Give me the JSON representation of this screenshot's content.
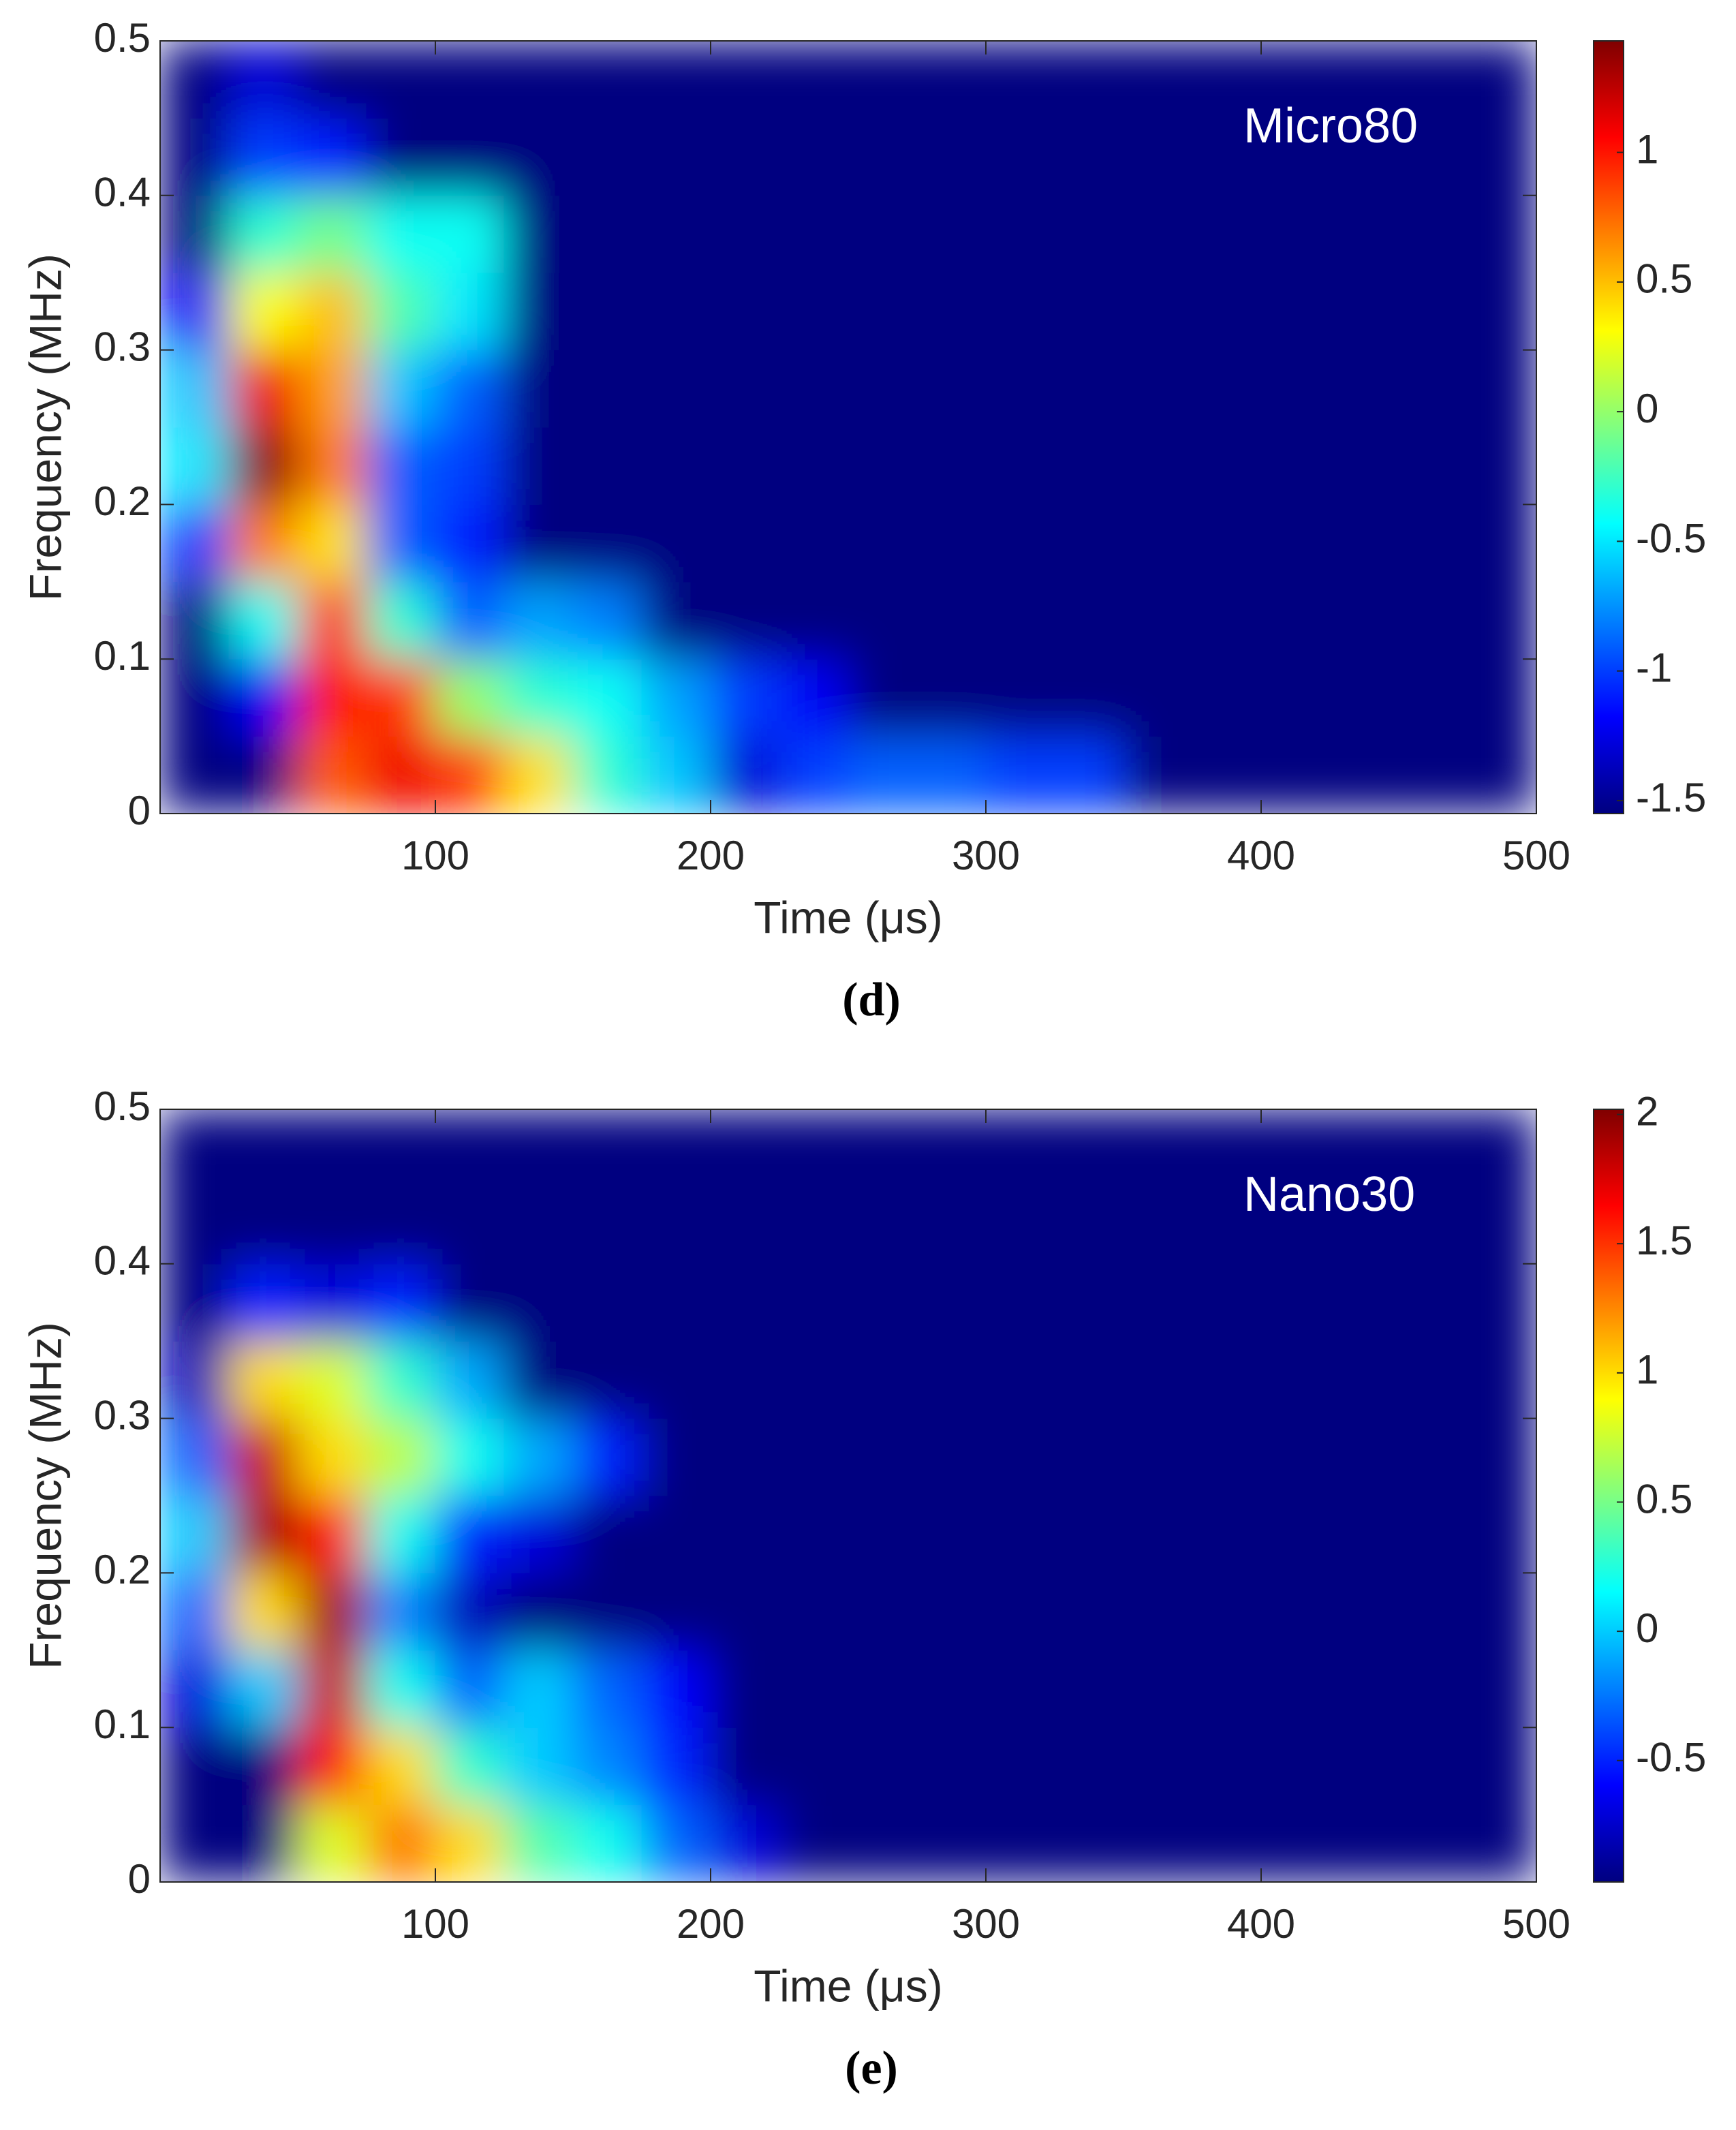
{
  "chart_data": [
    {
      "type": "heatmap",
      "annotation": "Micro80",
      "caption": "(d)",
      "xlabel": "Time (μs)",
      "ylabel": "Frequency (MHz)",
      "colormap": "jet",
      "x": [
        12.5,
        37.5,
        62.5,
        87.5,
        112.5,
        137.5,
        162.5,
        187.5,
        212.5,
        237.5,
        262.5,
        287.5,
        312.5,
        337.5,
        362.5,
        387.5,
        412.5,
        437.5,
        462.5,
        487.5
      ],
      "y": [
        0.025,
        0.075,
        0.125,
        0.175,
        0.225,
        0.275,
        0.325,
        0.375,
        0.425,
        0.475
      ],
      "z": [
        [
          -1.55,
          -1.55,
          0.8,
          1.1,
          0.9,
          0.4,
          -0.3,
          -0.6,
          -1.3,
          -1.0,
          -0.9,
          -0.9,
          -1.0,
          -1.0,
          -1.55,
          -1.55,
          -1.55,
          -1.55,
          -1.55,
          -1.55
        ],
        [
          -1.55,
          -1.2,
          1.0,
          0.9,
          0.0,
          -0.3,
          -0.4,
          -0.7,
          -1.0,
          -1.2,
          -1.55,
          -1.55,
          -1.55,
          -1.55,
          -1.55,
          -1.55,
          -1.55,
          -1.55,
          -1.55,
          -1.55
        ],
        [
          -1.55,
          -0.4,
          0.9,
          -0.3,
          -0.9,
          -0.7,
          -0.8,
          -1.55,
          -1.55,
          -1.55,
          -1.55,
          -1.55,
          -1.55,
          -1.55,
          -1.55,
          -1.55,
          -1.55,
          -1.55,
          -1.55,
          -1.55
        ],
        [
          -1.0,
          0.7,
          0.4,
          -0.9,
          -1.1,
          -1.55,
          -1.55,
          -1.55,
          -1.55,
          -1.55,
          -1.55,
          -1.55,
          -1.55,
          -1.55,
          -1.55,
          -1.55,
          -1.55,
          -1.55,
          -1.55,
          -1.55
        ],
        [
          -0.5,
          1.4,
          0.7,
          -0.9,
          -1.0,
          -1.55,
          -1.55,
          -1.55,
          -1.55,
          -1.55,
          -1.55,
          -1.55,
          -1.55,
          -1.55,
          -1.55,
          -1.55,
          -1.55,
          -1.55,
          -1.55,
          -1.55
        ],
        [
          -0.6,
          1.1,
          0.6,
          -0.6,
          -0.9,
          -1.55,
          -1.55,
          -1.55,
          -1.55,
          -1.55,
          -1.55,
          -1.55,
          -1.55,
          -1.55,
          -1.55,
          -1.55,
          -1.55,
          -1.55,
          -1.55,
          -1.55
        ],
        [
          -1.2,
          0.3,
          0.5,
          -0.2,
          -0.5,
          -1.55,
          -1.55,
          -1.55,
          -1.55,
          -1.55,
          -1.55,
          -1.55,
          -1.55,
          -1.55,
          -1.55,
          -1.55,
          -1.55,
          -1.55,
          -1.55,
          -1.55
        ],
        [
          -1.55,
          -0.3,
          -0.1,
          -0.4,
          -0.4,
          -1.55,
          -1.55,
          -1.55,
          -1.55,
          -1.55,
          -1.55,
          -1.55,
          -1.55,
          -1.55,
          -1.55,
          -1.55,
          -1.55,
          -1.55,
          -1.55,
          -1.55
        ],
        [
          -1.55,
          -1.0,
          -1.1,
          -1.55,
          -1.55,
          -1.55,
          -1.55,
          -1.55,
          -1.55,
          -1.55,
          -1.55,
          -1.55,
          -1.55,
          -1.55,
          -1.55,
          -1.55,
          -1.55,
          -1.55,
          -1.55,
          -1.55
        ],
        [
          -1.55,
          -1.3,
          -1.55,
          -1.55,
          -1.55,
          -1.55,
          -1.55,
          -1.55,
          -1.55,
          -1.55,
          -1.55,
          -1.55,
          -1.55,
          -1.55,
          -1.55,
          -1.55,
          -1.55,
          -1.55,
          -1.55,
          -1.55
        ]
      ],
      "xlim": [
        0,
        500
      ],
      "ylim": [
        0,
        0.5
      ],
      "xticks": [
        100,
        200,
        300,
        400,
        500
      ],
      "yticks": [
        0,
        0.1,
        0.2,
        0.3,
        0.4,
        0.5
      ],
      "clim": [
        -1.55,
        1.43
      ],
      "cticks": [
        -1.5,
        -1,
        -0.5,
        0,
        0.5,
        1
      ]
    },
    {
      "type": "heatmap",
      "annotation": "Nano30",
      "caption": "(e)",
      "xlabel": "Time (μs)",
      "ylabel": "Frequency (MHz)",
      "colormap": "jet",
      "x": [
        12.5,
        37.5,
        62.5,
        87.5,
        112.5,
        137.5,
        162.5,
        187.5,
        212.5,
        237.5,
        262.5,
        287.5,
        312.5,
        337.5,
        362.5,
        387.5,
        412.5,
        437.5,
        462.5,
        487.5
      ],
      "y": [
        0.025,
        0.075,
        0.125,
        0.175,
        0.225,
        0.275,
        0.325,
        0.375,
        0.425,
        0.475
      ],
      "z": [
        [
          -0.97,
          -0.97,
          0.8,
          1.3,
          1.0,
          0.4,
          0.2,
          -0.3,
          -0.7,
          -0.97,
          -0.97,
          -0.97,
          -0.97,
          -0.97,
          -0.97,
          -0.97,
          -0.97,
          -0.97,
          -0.97,
          -0.97
        ],
        [
          -0.97,
          -0.97,
          1.6,
          1.0,
          0.3,
          0.0,
          -0.2,
          -0.5,
          -0.97,
          -0.97,
          -0.97,
          -0.97,
          -0.97,
          -0.97,
          -0.97,
          -0.97,
          -0.97,
          -0.97,
          -0.97,
          -0.97
        ],
        [
          -0.7,
          0.0,
          1.8,
          0.2,
          -0.3,
          0.0,
          -0.3,
          -0.6,
          -0.97,
          -0.97,
          -0.97,
          -0.97,
          -0.97,
          -0.97,
          -0.97,
          -0.97,
          -0.97,
          -0.97,
          -0.97,
          -0.97
        ],
        [
          -0.3,
          1.0,
          1.9,
          -0.2,
          -0.8,
          -0.97,
          -0.97,
          -0.97,
          -0.97,
          -0.97,
          -0.97,
          -0.97,
          -0.97,
          -0.97,
          -0.97,
          -0.97,
          -0.97,
          -0.97,
          -0.97,
          -0.97
        ],
        [
          0.0,
          1.9,
          1.6,
          0.2,
          -0.5,
          -0.7,
          -0.97,
          -0.97,
          -0.97,
          -0.97,
          -0.97,
          -0.97,
          -0.97,
          -0.97,
          -0.97,
          -0.97,
          -0.97,
          -0.97,
          -0.97,
          -0.97
        ],
        [
          -0.3,
          1.8,
          1.0,
          0.7,
          0.2,
          -0.1,
          -0.5,
          -0.97,
          -0.97,
          -0.97,
          -0.97,
          -0.97,
          -0.97,
          -0.97,
          -0.97,
          -0.97,
          -0.97,
          -0.97,
          -0.97,
          -0.97
        ],
        [
          -0.8,
          1.0,
          0.8,
          0.3,
          -0.1,
          -0.97,
          -0.97,
          -0.97,
          -0.97,
          -0.97,
          -0.97,
          -0.97,
          -0.97,
          -0.97,
          -0.97,
          -0.97,
          -0.97,
          -0.97,
          -0.97,
          -0.97
        ],
        [
          -0.97,
          -0.5,
          -0.7,
          -0.5,
          -0.97,
          -0.97,
          -0.97,
          -0.97,
          -0.97,
          -0.97,
          -0.97,
          -0.97,
          -0.97,
          -0.97,
          -0.97,
          -0.97,
          -0.97,
          -0.97,
          -0.97,
          -0.97
        ],
        [
          -0.97,
          -0.97,
          -0.97,
          -0.97,
          -0.97,
          -0.97,
          -0.97,
          -0.97,
          -0.97,
          -0.97,
          -0.97,
          -0.97,
          -0.97,
          -0.97,
          -0.97,
          -0.97,
          -0.97,
          -0.97,
          -0.97,
          -0.97
        ],
        [
          -0.97,
          -0.97,
          -0.97,
          -0.97,
          -0.97,
          -0.97,
          -0.97,
          -0.97,
          -0.97,
          -0.97,
          -0.97,
          -0.97,
          -0.97,
          -0.97,
          -0.97,
          -0.97,
          -0.97,
          -0.97,
          -0.97,
          -0.97
        ]
      ],
      "xlim": [
        0,
        500
      ],
      "ylim": [
        0,
        0.5
      ],
      "xticks": [
        100,
        200,
        300,
        400,
        500
      ],
      "yticks": [
        0,
        0.1,
        0.2,
        0.3,
        0.4,
        0.5
      ],
      "clim": [
        -0.97,
        2.02
      ],
      "cticks": [
        -0.5,
        0,
        0.5,
        1,
        1.5,
        2
      ]
    }
  ]
}
